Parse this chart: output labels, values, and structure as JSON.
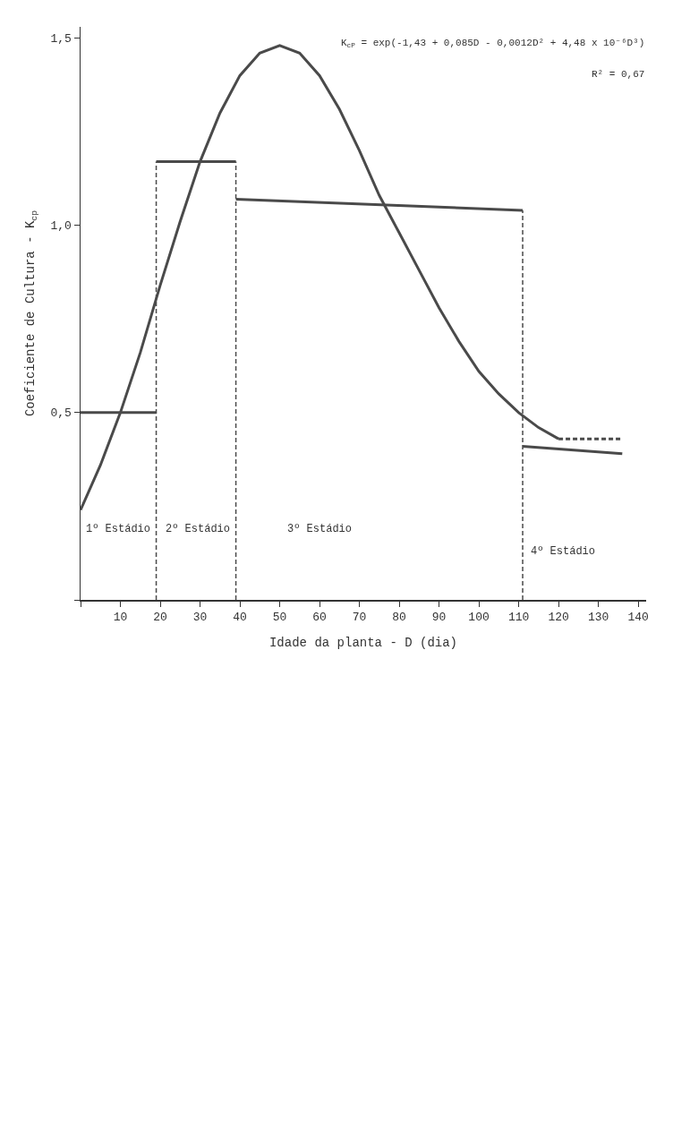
{
  "chart_data": {
    "type": "line",
    "xlabel": "Idade da planta - D (dia)",
    "ylabel": "Coeficiente de Cultura - K$_{cp}$",
    "annotations": [
      "K$_{cP}$ = exp(-1,43 + 0,085D - 0,0012D² + 4,48 x 10⁻⁶D³)",
      "R² = 0,67",
      "1º Estádio",
      "2º Estádio",
      "3º Estádio",
      "4º Estádio"
    ],
    "xlim": [
      0,
      142
    ],
    "xticks": [
      {
        "value": 0,
        "label": null
      },
      10,
      20,
      30,
      40,
      50,
      60,
      70,
      80,
      90,
      100,
      110,
      120,
      130,
      140
    ],
    "ylim": [
      0,
      1.53
    ],
    "yticks": [
      {
        "value": 0,
        "label": null
      },
      {
        "value": 0.5,
        "label": "0,5"
      },
      {
        "value": 1,
        "label": "1,0"
      },
      {
        "value": 1.5,
        "label": "1,5"
      }
    ],
    "series": [
      {
        "color": "#4a4a4a",
        "x": [
          0,
          5,
          10,
          15,
          20,
          25,
          30,
          35,
          40,
          45,
          50,
          55,
          60,
          65,
          70,
          75,
          80,
          85,
          90,
          95,
          100,
          105,
          110,
          115,
          120
        ],
        "values": [
          0.24,
          0.36,
          0.5,
          0.66,
          0.84,
          1.01,
          1.17,
          1.3,
          1.4,
          1.46,
          1.48,
          1.46,
          1.4,
          1.31,
          1.2,
          1.08,
          0.98,
          0.88,
          0.78,
          0.69,
          0.61,
          0.55,
          0.5,
          0.46,
          0.43
        ]
      },
      {
        "color": "#4a4a4a",
        "line_style": "dashed",
        "x": [
          120,
          128,
          136
        ],
        "values": [
          0.43,
          0.43,
          0.43
        ]
      },
      {
        "color": "#4a4a4a",
        "x": [
          0,
          19
        ],
        "values": [
          0.5,
          0.5
        ]
      },
      {
        "color": "#4a4a4a",
        "x": [
          19,
          39
        ],
        "values": [
          1.17,
          1.17
        ]
      },
      {
        "color": "#4a4a4a",
        "x": [
          39,
          111
        ],
        "values": [
          1.07,
          1.04
        ]
      },
      {
        "color": "#4a4a4a",
        "x": [
          111,
          136
        ],
        "values": [
          0.41,
          0.39
        ]
      }
    ],
    "ref_lines": [
      {
        "axis": "x",
        "value": 19,
        "line_style": "dashed",
        "color": "#4a4a4a"
      },
      {
        "axis": "x",
        "value": 39,
        "line_style": "dashed",
        "color": "#4a4a4a"
      },
      {
        "axis": "x",
        "value": 111,
        "line_style": "dashed",
        "color": "#4a4a4a"
      }
    ]
  }
}
